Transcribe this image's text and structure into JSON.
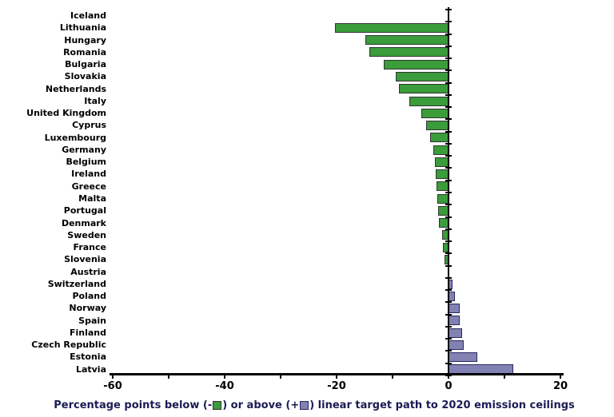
{
  "chart_data": {
    "type": "bar",
    "orientation": "horizontal",
    "categories": [
      "Iceland",
      "Lithuania",
      "Hungary",
      "Romania",
      "Bulgaria",
      "Slovakia",
      "Netherlands",
      "Italy",
      "United Kingdom",
      "Cyprus",
      "Luxembourg",
      "Germany",
      "Belgium",
      "Ireland",
      "Greece",
      "Malta",
      "Portugal",
      "Denmark",
      "Sweden",
      "France",
      "Slovenia",
      "Austria",
      "Switzerland",
      "Poland",
      "Norway",
      "Spain",
      "Finland",
      "Czech Republic",
      "Estonia",
      "Latvia"
    ],
    "values": [
      0.0,
      -20.3,
      -14.8,
      -14.2,
      -11.6,
      -9.5,
      -8.8,
      -7.0,
      -4.8,
      -4.0,
      -3.3,
      -2.7,
      -2.4,
      -2.3,
      -2.1,
      -2.0,
      -1.9,
      -1.7,
      -1.2,
      -1.0,
      -0.7,
      0.0,
      0.7,
      1.1,
      2.0,
      2.0,
      2.4,
      2.7,
      5.2,
      11.5
    ],
    "xlim": [
      -60,
      20
    ],
    "xticks": [
      -60,
      -40,
      -20,
      0,
      20
    ],
    "minor_tick_step": 10,
    "grid": false,
    "legend_position": "none",
    "title": "",
    "xlabel": "Percentage points below (-) or above (+) linear target path to 2020 emission ceilings",
    "ylabel": "",
    "caption": {
      "part1": "Percentage points below (-",
      "part2": ") or above (+",
      "part3": ") linear target path to 2020 emission ceilings"
    },
    "colors": {
      "negative_fill": "#3a9c3a",
      "negative_border": "#333333",
      "positive_fill": "#8181b4",
      "positive_border": "#29295e",
      "axis": "#000000",
      "caption_text": "#1b1b55"
    }
  }
}
